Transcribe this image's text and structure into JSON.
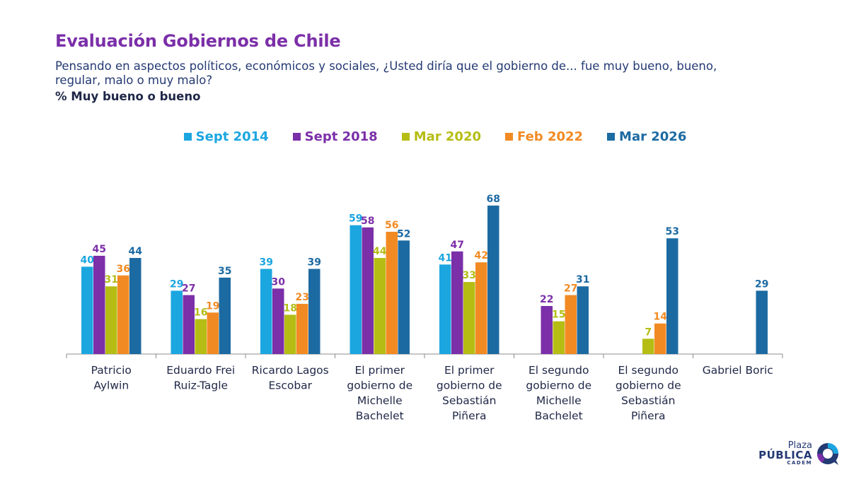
{
  "header": {
    "title": "Evaluación Gobiernos de Chile",
    "subtitle": "Pensando en aspectos políticos, económicos y sociales, ¿Usted diría que el gobierno de... fue muy bueno, bueno, regular, malo o muy malo?",
    "measure": "% Muy bueno o bueno"
  },
  "logo": {
    "line1": "Plaza",
    "line2": "PÚBLICA",
    "line3": "CADEM"
  },
  "chart_data": {
    "type": "bar",
    "title": "Evaluación Gobiernos de Chile",
    "ylabel": "% Muy bueno o bueno",
    "xlabel": "",
    "ylim": [
      0,
      75
    ],
    "grid": false,
    "legend": "top-center",
    "categories": [
      [
        "Patricio",
        "Aylwin"
      ],
      [
        "Eduardo Frei",
        "Ruiz-Tagle"
      ],
      [
        "Ricardo Lagos",
        "Escobar"
      ],
      [
        "El primer",
        "gobierno de",
        "Michelle",
        "Bachelet"
      ],
      [
        "El primer",
        "gobierno de",
        "Sebastián",
        "Piñera"
      ],
      [
        "El segundo",
        "gobierno de",
        "Michelle",
        "Bachelet"
      ],
      [
        "El segundo",
        "gobierno de",
        "Sebastián",
        "Piñera"
      ],
      [
        "Gabriel Boric"
      ]
    ],
    "series": [
      {
        "name": "Sept 2014",
        "color": "#1ba6e0",
        "values": [
          40,
          29,
          39,
          59,
          41,
          null,
          null,
          null
        ]
      },
      {
        "name": "Sept 2018",
        "color": "#7b2fa8",
        "values": [
          45,
          27,
          30,
          58,
          47,
          22,
          null,
          null
        ]
      },
      {
        "name": "Mar 2020",
        "color": "#b5bd14",
        "values": [
          31,
          16,
          18,
          44,
          33,
          15,
          7,
          null
        ]
      },
      {
        "name": "Feb 2022",
        "color": "#f28a23",
        "values": [
          36,
          19,
          23,
          56,
          42,
          27,
          14,
          null
        ]
      },
      {
        "name": "Mar 2026",
        "color": "#1c6aa2",
        "values": [
          44,
          35,
          39,
          52,
          68,
          31,
          53,
          29
        ]
      }
    ]
  }
}
